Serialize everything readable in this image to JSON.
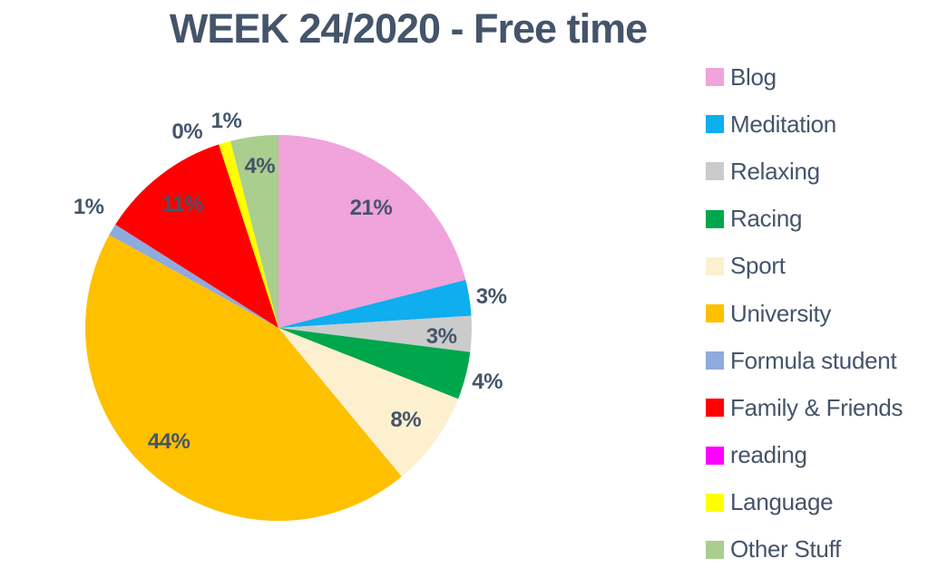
{
  "chart_data": {
    "type": "pie",
    "title": "WEEK 24/2020 - Free time",
    "legend_position": "right",
    "start_angle_deg": 0,
    "direction": "clockwise",
    "title_color": "#44546A",
    "label_color": "#44546A",
    "slices": [
      {
        "label": "Blog",
        "value": 21,
        "data_label": "21%",
        "color": "#F1A3DB"
      },
      {
        "label": "Meditation",
        "value": 3,
        "data_label": "3%",
        "color": "#0FAEEE"
      },
      {
        "label": "Relaxing",
        "value": 3,
        "data_label": "3%",
        "color": "#CBCBCB"
      },
      {
        "label": "Racing",
        "value": 4,
        "data_label": "4%",
        "color": "#00A64C"
      },
      {
        "label": "Sport",
        "value": 8,
        "data_label": "8%",
        "color": "#FCF0CE"
      },
      {
        "label": "University",
        "value": 44,
        "data_label": "44%",
        "color": "#FFC000"
      },
      {
        "label": "Formula student",
        "value": 1,
        "data_label": "1%",
        "color": "#8FAADC"
      },
      {
        "label": "Family & Friends",
        "value": 11,
        "data_label": "11%",
        "color": "#FF0000"
      },
      {
        "label": "reading",
        "value": 0,
        "data_label": "0%",
        "color": "#FF00FF"
      },
      {
        "label": "Language",
        "value": 1,
        "data_label": "1%",
        "color": "#FFFF00"
      },
      {
        "label": "Other Stuff",
        "value": 4,
        "data_label": "4%",
        "color": "#A9CE8E"
      }
    ]
  }
}
